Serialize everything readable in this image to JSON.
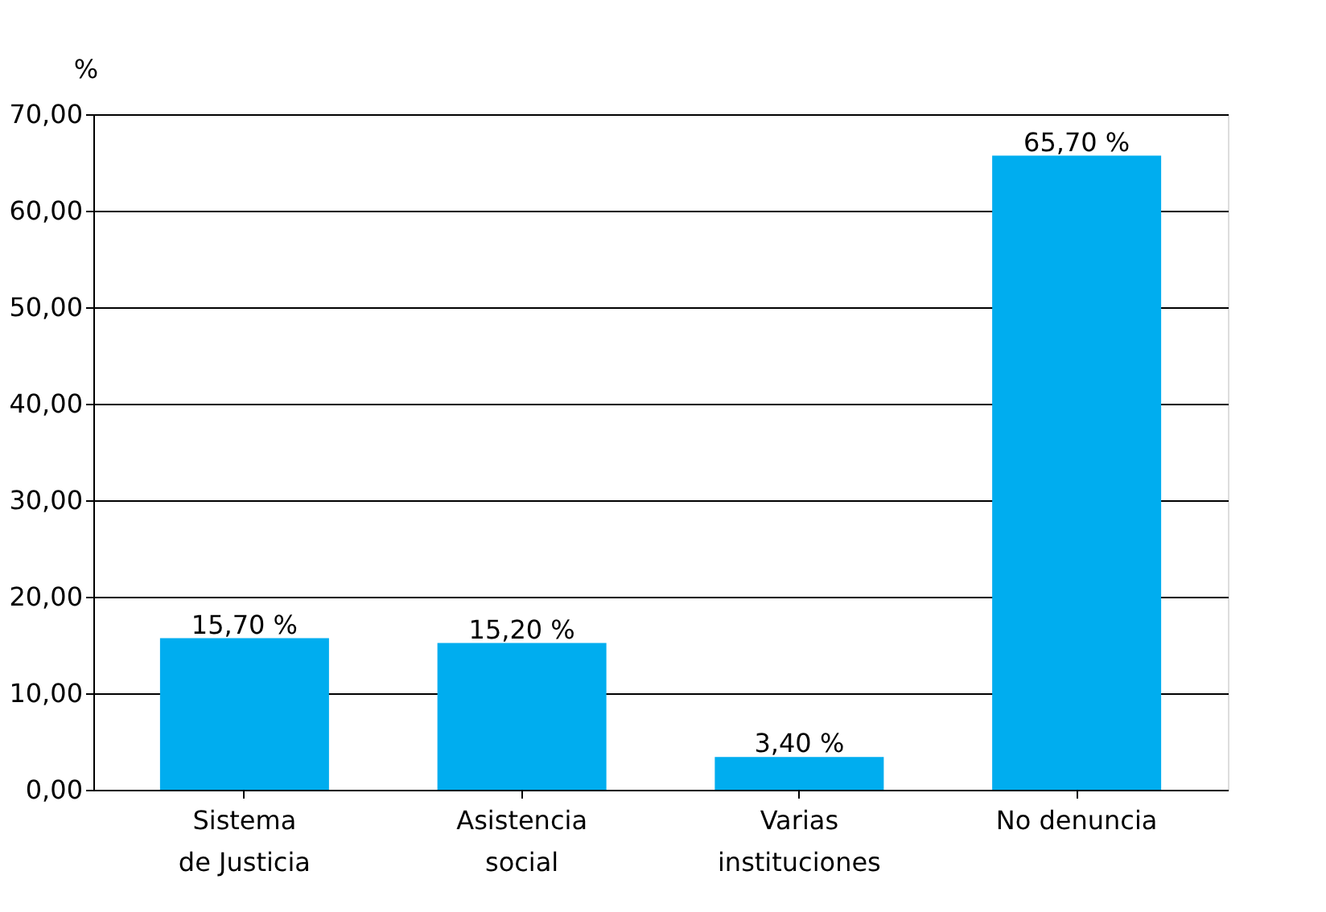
{
  "chart_data": {
    "type": "bar",
    "ylabel": "%",
    "categories": [
      "Sistema\nde Justicia",
      "Asistencia\nsocial",
      "Varias\ninstituciones",
      "No denuncia"
    ],
    "values": [
      15.7,
      15.2,
      3.4,
      65.7
    ],
    "value_labels": [
      "15,70 %",
      "15,20 %",
      "3,40 %",
      "65,70 %"
    ],
    "color": "#00adef",
    "ylim": [
      0,
      70
    ],
    "yticks": [
      {
        "value": 0,
        "label": "0,00"
      },
      {
        "value": 10,
        "label": "10,00"
      },
      {
        "value": 20,
        "label": "20,00"
      },
      {
        "value": 30,
        "label": "30,00"
      },
      {
        "value": 40,
        "label": "40,00"
      },
      {
        "value": 50,
        "label": "50,00"
      },
      {
        "value": 60,
        "label": "60,00"
      },
      {
        "value": 70,
        "label": "70,00"
      }
    ],
    "grid": "y"
  }
}
